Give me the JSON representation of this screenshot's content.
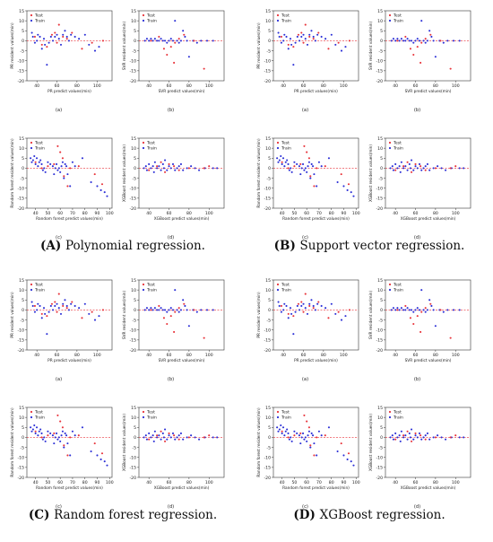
{
  "figure": {
    "panel_letters": [
      "(a)",
      "(b)",
      "(c)",
      "(d)"
    ],
    "captions": [
      {
        "letter": "(A)",
        "text": "Polynomial regression."
      },
      {
        "letter": "(B)",
        "text": "Support vector regression."
      },
      {
        "letter": "(C)",
        "text": "Random forest regression."
      },
      {
        "letter": "(D)",
        "text": "XGBoost regression."
      }
    ],
    "legend": {
      "test": "Test",
      "train": "Train"
    },
    "colors": {
      "test": "#e8333a",
      "train": "#2b2fd6",
      "zero_line": "#e8333a",
      "axis": "#333333"
    }
  },
  "chart_data": [
    {
      "id": "a",
      "type": "scatter",
      "xlabel": "PR predict values(min)",
      "ylabel": "PR resident values(min)",
      "xlim": [
        30,
        115
      ],
      "ylim": [
        -20,
        15
      ],
      "xticks": [
        40,
        60,
        80,
        100
      ],
      "yticks": [
        -20,
        -15,
        -10,
        -5,
        0,
        5,
        10,
        15
      ],
      "legend_position": "top-left",
      "grid": false,
      "zero_line": 0,
      "series": [
        {
          "name": "Test",
          "points": [
            [
              38,
              2
            ],
            [
              45,
              -2
            ],
            [
              50,
              -3
            ],
            [
              55,
              3
            ],
            [
              58,
              4
            ],
            [
              60,
              -1
            ],
            [
              62,
              8
            ],
            [
              66,
              2
            ],
            [
              70,
              1
            ],
            [
              75,
              4
            ],
            [
              85,
              -4
            ],
            [
              95,
              -1
            ],
            [
              106,
              0
            ]
          ]
        },
        {
          "name": "Train",
          "points": [
            [
              35,
              4
            ],
            [
              36,
              2
            ],
            [
              38,
              -1
            ],
            [
              40,
              0
            ],
            [
              41,
              3
            ],
            [
              43,
              2
            ],
            [
              45,
              -4
            ],
            [
              47,
              1
            ],
            [
              48,
              -2
            ],
            [
              50,
              -12
            ],
            [
              52,
              -1
            ],
            [
              54,
              2
            ],
            [
              56,
              0
            ],
            [
              58,
              2
            ],
            [
              60,
              3
            ],
            [
              62,
              1
            ],
            [
              64,
              -2
            ],
            [
              66,
              3
            ],
            [
              68,
              5
            ],
            [
              70,
              2
            ],
            [
              72,
              0
            ],
            [
              74,
              3
            ],
            [
              78,
              2
            ],
            [
              82,
              1
            ],
            [
              88,
              3
            ],
            [
              92,
              -2
            ],
            [
              98,
              -5
            ],
            [
              102,
              -3
            ]
          ]
        }
      ]
    },
    {
      "id": "b",
      "type": "scatter",
      "xlabel": "SVR predict values(min)",
      "ylabel": "SVR resident values(min)",
      "xlim": [
        30,
        115
      ],
      "ylim": [
        -20,
        15
      ],
      "xticks": [
        40,
        60,
        80,
        100
      ],
      "yticks": [
        -20,
        -15,
        -10,
        -5,
        0,
        5,
        10,
        15
      ],
      "legend_position": "top-left",
      "grid": false,
      "zero_line": 0,
      "series": [
        {
          "name": "Test",
          "points": [
            [
              42,
              0
            ],
            [
              50,
              2
            ],
            [
              55,
              -4
            ],
            [
              58,
              -7
            ],
            [
              62,
              -3
            ],
            [
              65,
              -11
            ],
            [
              66,
              -1
            ],
            [
              70,
              1
            ],
            [
              75,
              3
            ],
            [
              85,
              0
            ],
            [
              95,
              -14
            ]
          ]
        },
        {
          "name": "Train",
          "points": [
            [
              36,
              0
            ],
            [
              38,
              1
            ],
            [
              40,
              0
            ],
            [
              42,
              1
            ],
            [
              44,
              0
            ],
            [
              46,
              1
            ],
            [
              48,
              0
            ],
            [
              50,
              0
            ],
            [
              52,
              1
            ],
            [
              54,
              0
            ],
            [
              56,
              0
            ],
            [
              58,
              -1
            ],
            [
              60,
              0
            ],
            [
              62,
              1
            ],
            [
              64,
              0
            ],
            [
              66,
              10
            ],
            [
              68,
              0
            ],
            [
              70,
              -1
            ],
            [
              72,
              0
            ],
            [
              74,
              5
            ],
            [
              76,
              2
            ],
            [
              78,
              0
            ],
            [
              80,
              -8
            ],
            [
              84,
              0
            ],
            [
              88,
              -1
            ],
            [
              92,
              0
            ],
            [
              98,
              0
            ],
            [
              104,
              0
            ]
          ]
        }
      ]
    },
    {
      "id": "c",
      "type": "scatter",
      "xlabel": "Random forest predict values(min)",
      "ylabel": "Random forest resident values(min)",
      "xlim": [
        33,
        102
      ],
      "ylim": [
        -20,
        15
      ],
      "xticks": [
        40,
        50,
        60,
        70,
        80,
        90,
        100
      ],
      "yticks": [
        -20,
        -15,
        -10,
        -5,
        0,
        5,
        10,
        15
      ],
      "legend_position": "top-left",
      "grid": false,
      "zero_line": 0,
      "series": [
        {
          "name": "Test",
          "points": [
            [
              40,
              3
            ],
            [
              45,
              0
            ],
            [
              50,
              1
            ],
            [
              55,
              2
            ],
            [
              58,
              11
            ],
            [
              60,
              8
            ],
            [
              62,
              5
            ],
            [
              63,
              -4
            ],
            [
              66,
              -9
            ],
            [
              68,
              0
            ],
            [
              75,
              1
            ],
            [
              88,
              -3
            ],
            [
              94,
              -8
            ]
          ]
        },
        {
          "name": "Train",
          "points": [
            [
              36,
              5
            ],
            [
              37,
              3
            ],
            [
              38,
              4
            ],
            [
              39,
              6
            ],
            [
              40,
              2
            ],
            [
              41,
              5
            ],
            [
              42,
              1
            ],
            [
              43,
              3
            ],
            [
              44,
              4
            ],
            [
              45,
              2
            ],
            [
              46,
              -1
            ],
            [
              47,
              0
            ],
            [
              48,
              -2
            ],
            [
              50,
              3
            ],
            [
              52,
              2
            ],
            [
              54,
              1
            ],
            [
              55,
              -3
            ],
            [
              56,
              0
            ],
            [
              57,
              2
            ],
            [
              58,
              -1
            ],
            [
              59,
              0
            ],
            [
              60,
              -2
            ],
            [
              61,
              1
            ],
            [
              62,
              3
            ],
            [
              63,
              -5
            ],
            [
              64,
              2
            ],
            [
              65,
              1
            ],
            [
              66,
              -3
            ],
            [
              68,
              -9
            ],
            [
              70,
              3
            ],
            [
              72,
              1
            ],
            [
              78,
              5
            ],
            [
              85,
              -7
            ],
            [
              90,
              -9
            ],
            [
              93,
              -11
            ],
            [
              96,
              -12
            ],
            [
              98,
              -14
            ]
          ]
        }
      ]
    },
    {
      "id": "d",
      "type": "scatter",
      "xlabel": "XGBoost predict values(min)",
      "ylabel": "XGBoost resident values(min)",
      "xlim": [
        30,
        115
      ],
      "ylim": [
        -20,
        15
      ],
      "xticks": [
        40,
        60,
        80,
        100
      ],
      "yticks": [
        -20,
        -15,
        -10,
        -5,
        0,
        5,
        10,
        15
      ],
      "legend_position": "top-left",
      "grid": false,
      "zero_line": 0,
      "series": [
        {
          "name": "Test",
          "points": [
            [
              40,
              -1
            ],
            [
              48,
              1
            ],
            [
              52,
              3
            ],
            [
              56,
              -2
            ],
            [
              60,
              2
            ],
            [
              65,
              1
            ],
            [
              70,
              -1
            ],
            [
              80,
              0
            ],
            [
              95,
              0
            ],
            [
              100,
              1
            ]
          ]
        },
        {
          "name": "Train",
          "points": [
            [
              35,
              0
            ],
            [
              37,
              1
            ],
            [
              38,
              -1
            ],
            [
              40,
              2
            ],
            [
              42,
              0
            ],
            [
              44,
              1
            ],
            [
              45,
              -2
            ],
            [
              46,
              3
            ],
            [
              48,
              0
            ],
            [
              50,
              1
            ],
            [
              52,
              -1
            ],
            [
              54,
              2
            ],
            [
              55,
              0
            ],
            [
              56,
              4
            ],
            [
              58,
              -1
            ],
            [
              60,
              1
            ],
            [
              62,
              0
            ],
            [
              64,
              2
            ],
            [
              66,
              -1
            ],
            [
              68,
              0
            ],
            [
              70,
              1
            ],
            [
              72,
              2
            ],
            [
              74,
              -1
            ],
            [
              78,
              0
            ],
            [
              82,
              1
            ],
            [
              86,
              0
            ],
            [
              90,
              -1
            ],
            [
              96,
              0
            ],
            [
              104,
              0
            ],
            [
              108,
              0
            ]
          ]
        }
      ]
    }
  ]
}
